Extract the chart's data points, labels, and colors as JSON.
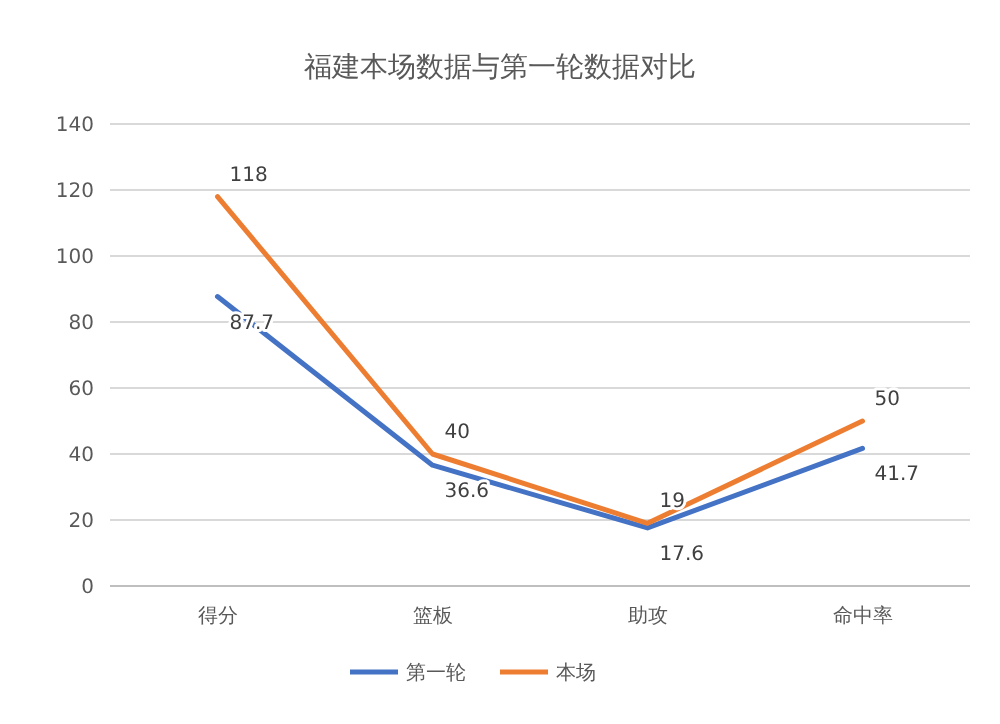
{
  "chart_data": {
    "type": "line",
    "title": "福建本场数据与第一轮数据对比",
    "categories": [
      "得分",
      "篮板",
      "助攻",
      "命中率"
    ],
    "series": [
      {
        "name": "第一轮",
        "color": "#4472c4",
        "values": [
          87.7,
          36.6,
          17.6,
          41.7
        ]
      },
      {
        "name": "本场",
        "color": "#ed7d31",
        "values": [
          118,
          40,
          19,
          50
        ]
      }
    ],
    "ylim": [
      0,
      140
    ],
    "yticks": [
      0,
      20,
      40,
      60,
      80,
      100,
      120,
      140
    ],
    "grid": "y",
    "legend": "bottom",
    "data_labels": true,
    "marker": "none",
    "line_style": "solid"
  }
}
